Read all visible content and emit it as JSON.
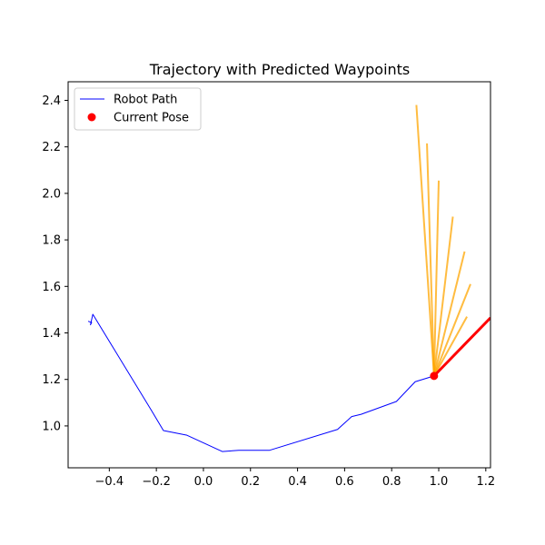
{
  "chart_data": {
    "type": "line",
    "title": "Trajectory with Predicted Waypoints",
    "xlabel": "",
    "ylabel": "",
    "xlim": [
      -0.575,
      1.22
    ],
    "ylim": [
      0.82,
      2.48
    ],
    "xticks": [
      -0.4,
      -0.2,
      0.0,
      0.2,
      0.4,
      0.6,
      0.8,
      1.0,
      1.2
    ],
    "xtick_labels": [
      "−0.4",
      "−0.2",
      "0.0",
      "0.2",
      "0.4",
      "0.6",
      "0.8",
      "1.0",
      "1.2"
    ],
    "yticks": [
      1.0,
      1.2,
      1.4,
      1.6,
      1.8,
      2.0,
      2.2,
      2.4
    ],
    "ytick_labels": [
      "1.0",
      "1.2",
      "1.4",
      "1.6",
      "1.8",
      "2.0",
      "2.2",
      "2.4"
    ],
    "grid": false,
    "legend": {
      "location": "upper-left",
      "entries": [
        {
          "label": "Robot Path",
          "kind": "line",
          "color": "#0000ff"
        },
        {
          "label": "Current Pose",
          "kind": "marker",
          "color": "#ff0000"
        }
      ]
    },
    "robot_path": {
      "name": "Robot Path",
      "color": "#0000ff",
      "x": [
        -0.49,
        -0.475,
        -0.48,
        -0.47,
        -0.22,
        -0.17,
        -0.07,
        0.08,
        0.15,
        0.28,
        0.57,
        0.63,
        0.67,
        0.82,
        0.9,
        0.98
      ],
      "y": [
        1.45,
        1.445,
        1.435,
        1.48,
        1.065,
        0.98,
        0.96,
        0.89,
        0.895,
        0.895,
        0.985,
        1.04,
        1.05,
        1.105,
        1.19,
        1.215
      ]
    },
    "current_pose": {
      "name": "Current Pose",
      "color": "#ff0000",
      "x": 0.98,
      "y": 1.215
    },
    "heading": {
      "color": "#ff0000",
      "x": [
        0.98,
        1.22
      ],
      "y": [
        1.215,
        1.465
      ]
    },
    "predicted_waypoints": {
      "color": "#ffa500",
      "origin": [
        0.98,
        1.215
      ],
      "endpoints": [
        [
          0.905,
          2.38
        ],
        [
          0.95,
          2.215
        ],
        [
          1.0,
          2.055
        ],
        [
          1.06,
          1.9
        ],
        [
          1.11,
          1.75
        ],
        [
          1.135,
          1.61
        ],
        [
          1.12,
          1.47
        ]
      ]
    }
  }
}
